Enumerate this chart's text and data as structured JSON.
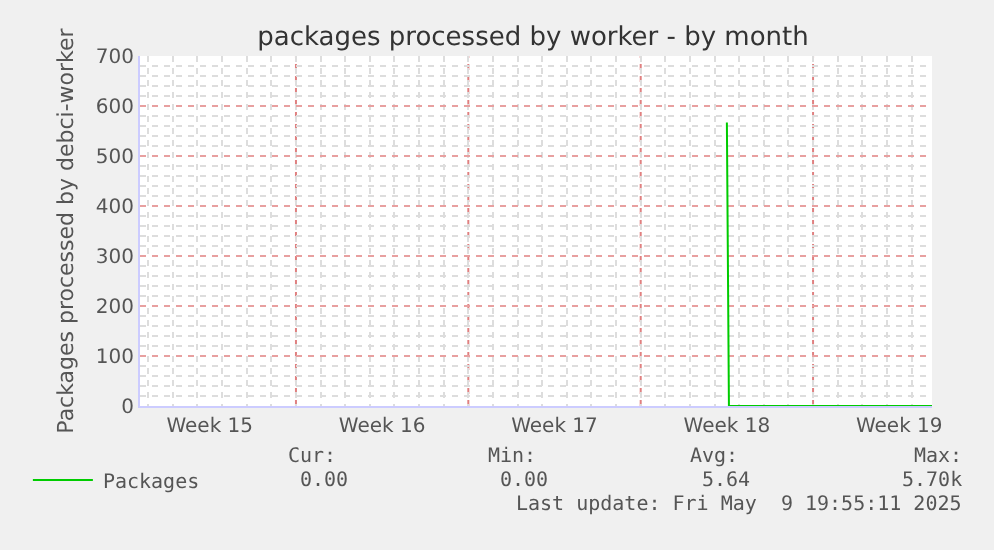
{
  "chart_data": {
    "type": "line",
    "title": "packages processed by worker - by month",
    "ylabel": "Packages processed by debci-worker",
    "x": [
      "2025-05-01T12:00",
      "2025-05-01T14:00",
      "2025-05-09T19:55"
    ],
    "series": [
      {
        "name": "Packages",
        "color": "#00cc00",
        "values": [
          567,
          0,
          0
        ]
      }
    ],
    "xlim": [
      "2025-04-07T16:00",
      "2025-05-09T19:55"
    ],
    "xticks": [
      {
        "value": "2025-04-10T12:00",
        "label": "Week 15"
      },
      {
        "value": "2025-04-14",
        "label": null
      },
      {
        "value": "2025-04-17T12:00",
        "label": "Week 16"
      },
      {
        "value": "2025-04-21",
        "label": null
      },
      {
        "value": "2025-04-24T12:00",
        "label": "Week 17"
      },
      {
        "value": "2025-04-28",
        "label": null
      },
      {
        "value": "2025-05-01T12:00",
        "label": "Week 18"
      },
      {
        "value": "2025-05-05",
        "label": null
      },
      {
        "value": "2025-05-08T12:00",
        "label": "Week 19"
      }
    ],
    "ylim": [
      0,
      700
    ],
    "yticks": [
      0,
      100,
      200,
      300,
      400,
      500,
      600,
      700
    ],
    "grid": true,
    "legend": "bottom left",
    "marker": "none",
    "line_style": "solid",
    "annotations": [
      "Cur:",
      "Min:",
      "Avg:",
      "Max:",
      "0.00",
      "0.00",
      "5.64",
      "5.70k",
      "Last update: Fri May  9 19:55:11 2025"
    ]
  }
}
